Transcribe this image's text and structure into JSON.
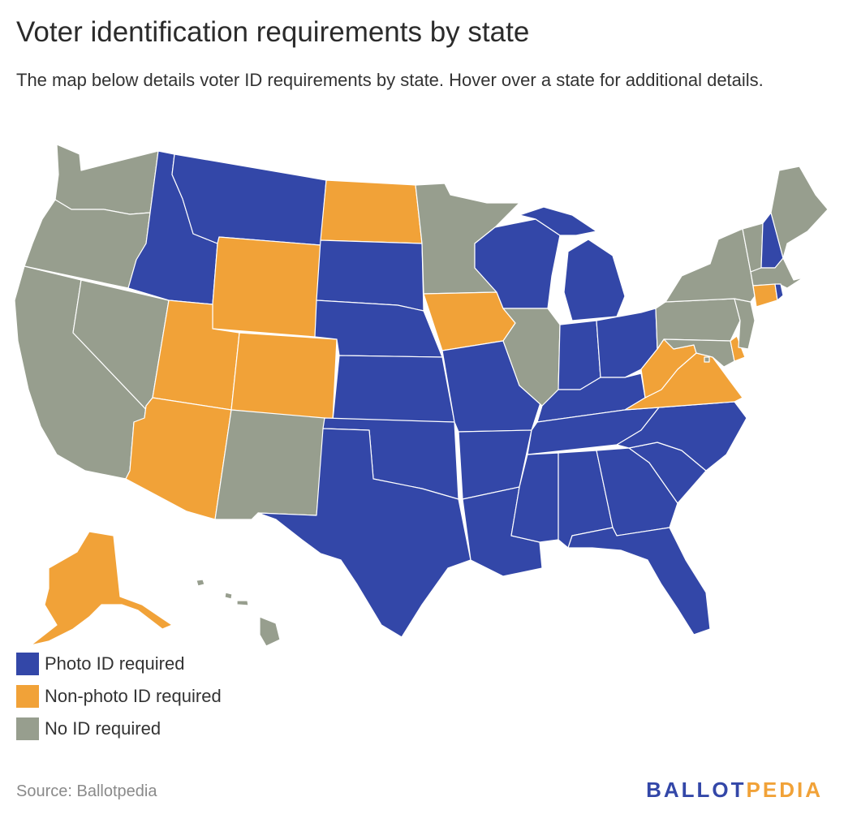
{
  "title": "Voter identification requirements by state",
  "subtitle": "The map below details voter ID requirements by state. Hover over a state for additional details.",
  "legend": [
    {
      "key": "photo",
      "label": "Photo ID required",
      "color": "#3347a8"
    },
    {
      "key": "nonphoto",
      "label": "Non-photo ID required",
      "color": "#f1a238"
    },
    {
      "key": "none",
      "label": "No ID required",
      "color": "#979e8e"
    }
  ],
  "states": {
    "WA": "none",
    "OR": "none",
    "CA": "none",
    "NV": "none",
    "ID": "photo",
    "MT": "photo",
    "WY": "nonphoto",
    "UT": "nonphoto",
    "AZ": "nonphoto",
    "CO": "nonphoto",
    "NM": "none",
    "ND": "nonphoto",
    "SD": "photo",
    "NE": "photo",
    "KS": "photo",
    "OK": "photo",
    "TX": "photo",
    "MN": "none",
    "IA": "nonphoto",
    "MO": "photo",
    "AR": "photo",
    "LA": "photo",
    "WI": "photo",
    "IL": "none",
    "MI": "photo",
    "IN": "photo",
    "OH": "photo",
    "KY": "photo",
    "TN": "photo",
    "MS": "photo",
    "AL": "photo",
    "GA": "photo",
    "FL": "photo",
    "SC": "photo",
    "NC": "photo",
    "VA": "nonphoto",
    "WV": "nonphoto",
    "PA": "none",
    "NY": "none",
    "VT": "none",
    "NH": "photo",
    "ME": "none",
    "MA": "none",
    "RI": "photo",
    "CT": "nonphoto",
    "NJ": "none",
    "DE": "nonphoto",
    "MD": "none",
    "DC": "none",
    "AK": "nonphoto",
    "HI": "none"
  },
  "source": "Source: Ballotpedia",
  "logo": {
    "part1": "BALLOT",
    "part2": "PEDIA",
    "color1": "#3347a8",
    "color2": "#f1a238"
  }
}
